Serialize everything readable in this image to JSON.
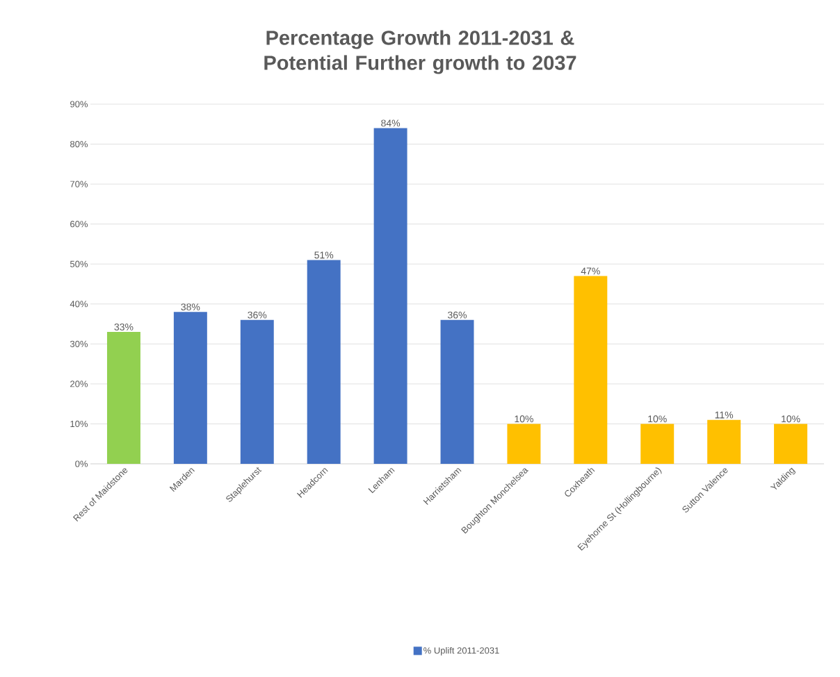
{
  "chart_data": {
    "type": "bar",
    "title": "Percentage Growth 2011-2031 & Potential Further growth to 2037",
    "categories": [
      "Rest of Maidstone",
      "Marden",
      "Staplehurst",
      "Headcorn",
      "Lenham",
      "Harrietsham",
      "Boughton Monchelsea",
      "Coxheath",
      "Eyehorne St (Hollingbourne)",
      "Sutton Valence",
      "Yalding"
    ],
    "series": [
      {
        "name": "% Uplift 2011-2031",
        "color": "#4472c4",
        "values": [
          33,
          38,
          36,
          51,
          84,
          36,
          10,
          47,
          10,
          11,
          10
        ],
        "colors": [
          "#92d050",
          "#4472c4",
          "#4472c4",
          "#4472c4",
          "#4472c4",
          "#4472c4",
          "#ffc000",
          "#ffc000",
          "#ffc000",
          "#ffc000",
          "#ffc000"
        ],
        "value_labels": [
          "33%",
          "38%",
          "36%",
          "51%",
          "84%",
          "36%",
          "10%",
          "47%",
          "10%",
          "11%",
          "10%"
        ]
      }
    ],
    "ylim": [
      0,
      90
    ],
    "yticks": [
      {
        "value": 0,
        "label": "0%"
      },
      {
        "value": 10,
        "label": "10%"
      },
      {
        "value": 20,
        "label": "20%"
      },
      {
        "value": 30,
        "label": "30%"
      },
      {
        "value": 40,
        "label": "40%"
      },
      {
        "value": 50,
        "label": "50%"
      },
      {
        "value": 60,
        "label": "60%"
      },
      {
        "value": 70,
        "label": "70%"
      },
      {
        "value": 80,
        "label": "80%"
      },
      {
        "value": 90,
        "label": "90%"
      }
    ],
    "grid": "y",
    "legend": "bottom"
  }
}
